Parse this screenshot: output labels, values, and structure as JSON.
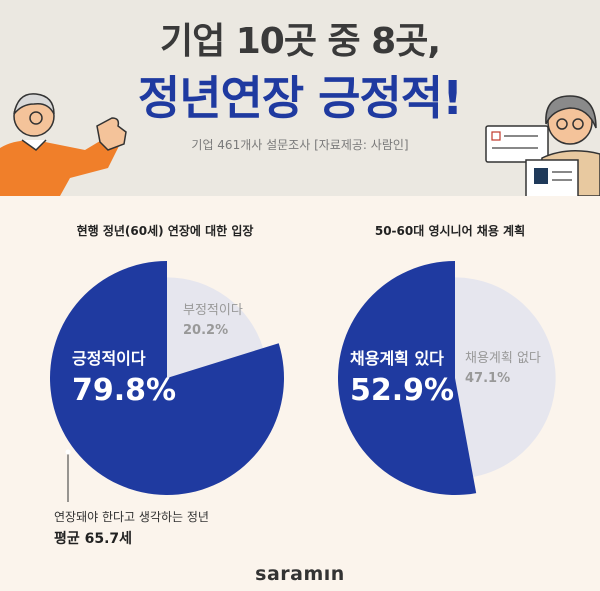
{
  "header": {
    "line1": "기업 10곳 중 8곳,",
    "line2": "정년연장 긍정적!",
    "subtitle": "기업 461개사 설문조사  [자료제공: 사람인]"
  },
  "chart_data": [
    {
      "type": "pie",
      "title": "현행 정년(60세) 연장에 대한 입장",
      "slices": [
        {
          "label": "긍정적이다",
          "value": 79.8,
          "display": "79.8%",
          "color": "#1f3aa0"
        },
        {
          "label": "부정적이다",
          "value": 20.2,
          "display": "20.2%",
          "color": "#e6e6ee"
        }
      ]
    },
    {
      "type": "pie",
      "title": "50-60대 영시니어 채용 계획",
      "slices": [
        {
          "label": "채용계획 있다",
          "value": 52.9,
          "display": "52.9%",
          "color": "#1f3aa0"
        },
        {
          "label": "채용계획 없다",
          "value": 47.1,
          "display": "47.1%",
          "color": "#e6e6ee"
        }
      ]
    }
  ],
  "note": {
    "line1": "연장돼야 한다고 생각하는 정년",
    "line2": "평균 65.7세"
  },
  "footer": {
    "logo_main": "saramın",
    "brand_color": "#1f3aa0"
  }
}
